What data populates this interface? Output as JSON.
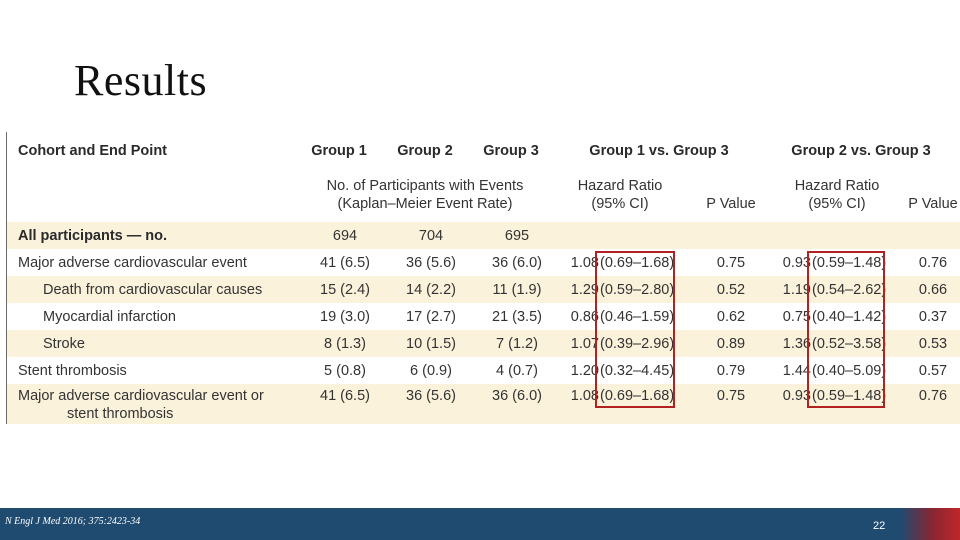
{
  "slide": {
    "title": "Results"
  },
  "table": {
    "headers": {
      "cohort": "Cohort and End Point",
      "group1": "Group 1",
      "group2": "Group 2",
      "group3": "Group 3",
      "g1vsg3": "Group 1 vs. Group 3",
      "g2vsg3": "Group 2 vs. Group 3",
      "events_line1": "No. of Participants with Events",
      "events_line2": "(Kaplan–Meier Event Rate)",
      "hr1_line1": "Hazard Ratio",
      "hr1_line2": "(95% CI)",
      "p1": "P Value",
      "hr2_line1": "Hazard Ratio",
      "hr2_line2": "(95% CI)",
      "p2": "P Value"
    },
    "all_participants": {
      "label": "All participants — no.",
      "g1": "694",
      "g2": "704",
      "g3": "695"
    },
    "rows": [
      {
        "label": "Major adverse cardiovascular event",
        "g1": "41 (6.5)",
        "g2": "36 (5.6)",
        "g3": "36 (6.0)",
        "hr1": "1.08",
        "ci1": "(0.69–1.68)",
        "p1": "0.75",
        "hr2": "0.93",
        "ci2": "(0.59–1.48)",
        "p2": "0.76"
      },
      {
        "label": "Death from cardiovascular causes",
        "g1": "15 (2.4)",
        "g2": "14 (2.2)",
        "g3": "11 (1.9)",
        "hr1": "1.29",
        "ci1": "(0.59–2.80)",
        "p1": "0.52",
        "hr2": "1.19",
        "ci2": "(0.54–2.62)",
        "p2": "0.66"
      },
      {
        "label": "Myocardial infarction",
        "g1": "19 (3.0)",
        "g2": "17 (2.7)",
        "g3": "21 (3.5)",
        "hr1": "0.86",
        "ci1": "(0.46–1.59)",
        "p1": "0.62",
        "hr2": "0.75",
        "ci2": "(0.40–1.42)",
        "p2": "0.37"
      },
      {
        "label": "Stroke",
        "g1": "8 (1.3)",
        "g2": "10 (1.5)",
        "g3": "7 (1.2)",
        "hr1": "1.07",
        "ci1": "(0.39–2.96)",
        "p1": "0.89",
        "hr2": "1.36",
        "ci2": "(0.52–3.58)",
        "p2": "0.53"
      },
      {
        "label": "Stent thrombosis",
        "g1": "5 (0.8)",
        "g2": "6 (0.9)",
        "g3": "4 (0.7)",
        "hr1": "1.20",
        "ci1": "(0.32–4.45)",
        "p1": "0.79",
        "hr2": "1.44",
        "ci2": "(0.40–5.09)",
        "p2": "0.57"
      },
      {
        "label_line1": "Major adverse cardiovascular event or",
        "label_line2": "stent thrombosis",
        "g1": "41 (6.5)",
        "g2": "36 (5.6)",
        "g3": "36 (6.0)",
        "hr1": "1.08",
        "ci1": "(0.69–1.68)",
        "p1": "0.75",
        "hr2": "0.93",
        "ci2": "(0.59–1.48)",
        "p2": "0.76"
      }
    ]
  },
  "footer": {
    "citation": "N Engl J Med 2016; 375:2423-34",
    "page_number": "22"
  },
  "colors": {
    "row_shade": "#fbf2dc",
    "highlight_box": "#b22222",
    "footer_bar": "#1f4b71",
    "footer_accent": "#c0262c"
  }
}
